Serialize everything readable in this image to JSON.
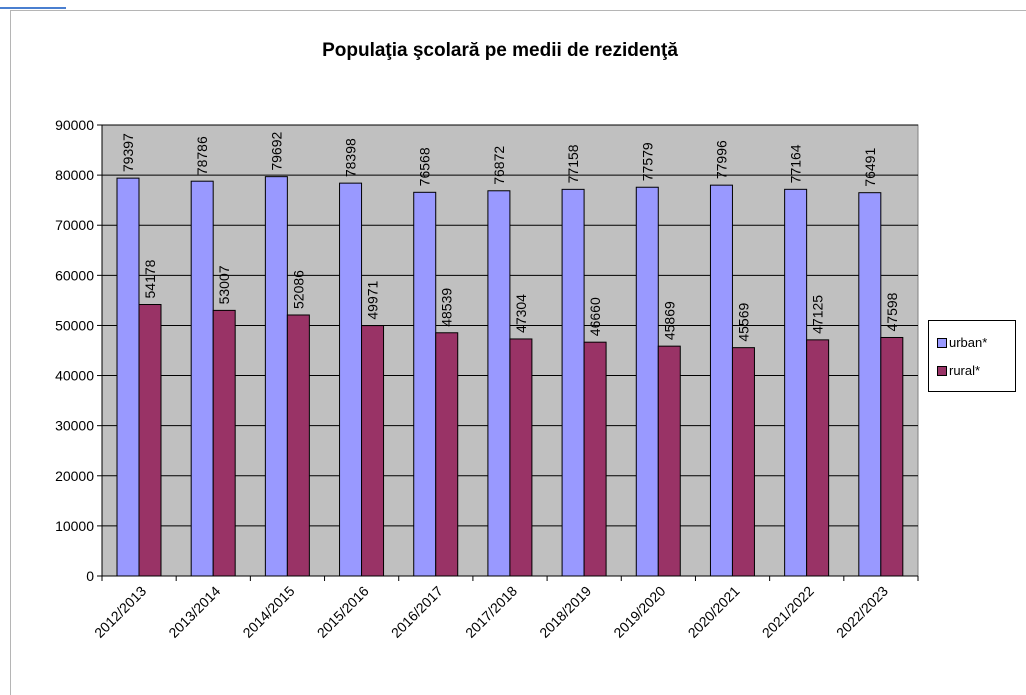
{
  "colors": {
    "urban": "#9999ff",
    "rural": "#993366",
    "plot_bg": "#c0c0c0"
  },
  "chart_data": {
    "type": "bar",
    "title": "Populaţia şcolară pe medii de rezidenţă",
    "categories": [
      "2012/2013",
      "2013/2014",
      "2014/2015",
      "2015/2016",
      "2016/2017",
      "2017/2018",
      "2018/2019",
      "2019/2020",
      "2020/2021",
      "2021/2022",
      "2022/2023"
    ],
    "series": [
      {
        "name": "urban*",
        "values": [
          79397,
          78786,
          79692,
          78398,
          76568,
          76872,
          77158,
          77579,
          77996,
          77164,
          76491
        ]
      },
      {
        "name": "rural*",
        "values": [
          54178,
          53007,
          52086,
          49971,
          48539,
          47304,
          46660,
          45869,
          45569,
          47125,
          47598
        ]
      }
    ],
    "ylim": [
      0,
      90000
    ],
    "yticks": [
      0,
      10000,
      20000,
      30000,
      40000,
      50000,
      60000,
      70000,
      80000,
      90000
    ],
    "grid": true,
    "legend_position": "right",
    "data_labels": true
  }
}
